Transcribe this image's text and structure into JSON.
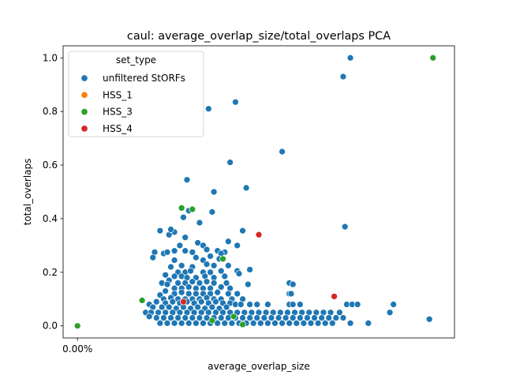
{
  "chart_data": {
    "type": "scatter",
    "title": "caul: average_overlap_size/total_overlaps PCA",
    "xlabel": "average_overlap_size",
    "ylabel": "total_overlaps",
    "x_ticks": [
      "0.00%"
    ],
    "y_ticks": [
      "0.0",
      "0.2",
      "0.4",
      "0.6",
      "0.8",
      "1.0"
    ],
    "xlim": [
      -0.04,
      1.05
    ],
    "ylim": [
      -0.045,
      1.045
    ],
    "grid": false,
    "legend": {
      "title": "set_type",
      "placement": "top-left"
    },
    "series": [
      {
        "name": "unfiltered StORFs",
        "color": "#1f77b4",
        "points": [
          [
            0.76,
            1.0
          ],
          [
            0.74,
            0.93
          ],
          [
            0.44,
            0.835
          ],
          [
            0.365,
            0.81
          ],
          [
            0.57,
            0.65
          ],
          [
            0.425,
            0.61
          ],
          [
            0.745,
            0.37
          ],
          [
            0.47,
            0.515
          ],
          [
            0.305,
            0.545
          ],
          [
            0.38,
            0.5
          ],
          [
            0.31,
            0.43
          ],
          [
            0.375,
            0.425
          ],
          [
            0.295,
            0.405
          ],
          [
            0.34,
            0.385
          ],
          [
            0.46,
            0.355
          ],
          [
            0.27,
            0.35
          ],
          [
            0.23,
            0.355
          ],
          [
            0.255,
            0.34
          ],
          [
            0.3,
            0.33
          ],
          [
            0.26,
            0.36
          ],
          [
            0.285,
            0.3
          ],
          [
            0.335,
            0.31
          ],
          [
            0.35,
            0.3
          ],
          [
            0.42,
            0.315
          ],
          [
            0.215,
            0.275
          ],
          [
            0.24,
            0.27
          ],
          [
            0.25,
            0.275
          ],
          [
            0.27,
            0.28
          ],
          [
            0.3,
            0.28
          ],
          [
            0.32,
            0.275
          ],
          [
            0.36,
            0.285
          ],
          [
            0.39,
            0.28
          ],
          [
            0.41,
            0.275
          ],
          [
            0.445,
            0.3
          ],
          [
            0.21,
            0.255
          ],
          [
            0.33,
            0.255
          ],
          [
            0.37,
            0.26
          ],
          [
            0.4,
            0.27
          ],
          [
            0.27,
            0.245
          ],
          [
            0.35,
            0.245
          ],
          [
            0.395,
            0.25
          ],
          [
            0.26,
            0.22
          ],
          [
            0.29,
            0.225
          ],
          [
            0.32,
            0.22
          ],
          [
            0.36,
            0.23
          ],
          [
            0.38,
            0.225
          ],
          [
            0.42,
            0.225
          ],
          [
            0.48,
            0.21
          ],
          [
            0.28,
            0.2
          ],
          [
            0.3,
            0.2
          ],
          [
            0.315,
            0.205
          ],
          [
            0.35,
            0.2
          ],
          [
            0.37,
            0.2
          ],
          [
            0.4,
            0.205
          ],
          [
            0.445,
            0.205
          ],
          [
            0.45,
            0.195
          ],
          [
            0.245,
            0.19
          ],
          [
            0.27,
            0.185
          ],
          [
            0.29,
            0.185
          ],
          [
            0.305,
            0.18
          ],
          [
            0.33,
            0.18
          ],
          [
            0.355,
            0.185
          ],
          [
            0.38,
            0.18
          ],
          [
            0.41,
            0.185
          ],
          [
            0.255,
            0.17
          ],
          [
            0.28,
            0.16
          ],
          [
            0.3,
            0.16
          ],
          [
            0.32,
            0.165
          ],
          [
            0.34,
            0.16
          ],
          [
            0.36,
            0.165
          ],
          [
            0.38,
            0.16
          ],
          [
            0.415,
            0.16
          ],
          [
            0.475,
            0.155
          ],
          [
            0.59,
            0.16
          ],
          [
            0.6,
            0.155
          ],
          [
            0.235,
            0.16
          ],
          [
            0.25,
            0.155
          ],
          [
            0.27,
            0.14
          ],
          [
            0.29,
            0.14
          ],
          [
            0.31,
            0.145
          ],
          [
            0.33,
            0.14
          ],
          [
            0.35,
            0.14
          ],
          [
            0.37,
            0.14
          ],
          [
            0.4,
            0.145
          ],
          [
            0.425,
            0.14
          ],
          [
            0.245,
            0.13
          ],
          [
            0.27,
            0.12
          ],
          [
            0.29,
            0.125
          ],
          [
            0.31,
            0.12
          ],
          [
            0.33,
            0.12
          ],
          [
            0.35,
            0.12
          ],
          [
            0.37,
            0.12
          ],
          [
            0.39,
            0.125
          ],
          [
            0.42,
            0.12
          ],
          [
            0.445,
            0.12
          ],
          [
            0.59,
            0.12
          ],
          [
            0.595,
            0.12
          ],
          [
            0.23,
            0.115
          ],
          [
            0.24,
            0.1
          ],
          [
            0.26,
            0.105
          ],
          [
            0.28,
            0.1
          ],
          [
            0.3,
            0.1
          ],
          [
            0.32,
            0.1
          ],
          [
            0.34,
            0.1
          ],
          [
            0.36,
            0.105
          ],
          [
            0.38,
            0.1
          ],
          [
            0.4,
            0.1
          ],
          [
            0.43,
            0.1
          ],
          [
            0.46,
            0.1
          ],
          [
            0.22,
            0.09
          ],
          [
            0.245,
            0.085
          ],
          [
            0.265,
            0.09
          ],
          [
            0.285,
            0.085
          ],
          [
            0.305,
            0.09
          ],
          [
            0.325,
            0.085
          ],
          [
            0.345,
            0.09
          ],
          [
            0.365,
            0.085
          ],
          [
            0.385,
            0.09
          ],
          [
            0.405,
            0.085
          ],
          [
            0.425,
            0.085
          ],
          [
            0.44,
            0.08
          ],
          [
            0.455,
            0.08
          ],
          [
            0.48,
            0.08
          ],
          [
            0.5,
            0.08
          ],
          [
            0.53,
            0.08
          ],
          [
            0.59,
            0.08
          ],
          [
            0.6,
            0.08
          ],
          [
            0.62,
            0.08
          ],
          [
            0.75,
            0.08
          ],
          [
            0.765,
            0.08
          ],
          [
            0.78,
            0.08
          ],
          [
            0.88,
            0.08
          ],
          [
            0.2,
            0.08
          ],
          [
            0.21,
            0.07
          ],
          [
            0.235,
            0.07
          ],
          [
            0.255,
            0.07
          ],
          [
            0.275,
            0.065
          ],
          [
            0.295,
            0.07
          ],
          [
            0.315,
            0.065
          ],
          [
            0.335,
            0.07
          ],
          [
            0.355,
            0.065
          ],
          [
            0.375,
            0.07
          ],
          [
            0.395,
            0.065
          ],
          [
            0.415,
            0.07
          ],
          [
            0.19,
            0.05
          ],
          [
            0.205,
            0.05
          ],
          [
            0.225,
            0.05
          ],
          [
            0.245,
            0.05
          ],
          [
            0.265,
            0.05
          ],
          [
            0.285,
            0.05
          ],
          [
            0.305,
            0.05
          ],
          [
            0.325,
            0.05
          ],
          [
            0.345,
            0.05
          ],
          [
            0.365,
            0.05
          ],
          [
            0.385,
            0.05
          ],
          [
            0.405,
            0.05
          ],
          [
            0.425,
            0.05
          ],
          [
            0.445,
            0.05
          ],
          [
            0.465,
            0.05
          ],
          [
            0.485,
            0.05
          ],
          [
            0.505,
            0.05
          ],
          [
            0.525,
            0.05
          ],
          [
            0.545,
            0.05
          ],
          [
            0.565,
            0.05
          ],
          [
            0.585,
            0.05
          ],
          [
            0.605,
            0.05
          ],
          [
            0.625,
            0.05
          ],
          [
            0.645,
            0.05
          ],
          [
            0.665,
            0.05
          ],
          [
            0.685,
            0.05
          ],
          [
            0.705,
            0.05
          ],
          [
            0.73,
            0.05
          ],
          [
            0.87,
            0.05
          ],
          [
            0.2,
            0.035
          ],
          [
            0.22,
            0.03
          ],
          [
            0.24,
            0.03
          ],
          [
            0.26,
            0.03
          ],
          [
            0.28,
            0.03
          ],
          [
            0.3,
            0.03
          ],
          [
            0.32,
            0.03
          ],
          [
            0.34,
            0.03
          ],
          [
            0.36,
            0.03
          ],
          [
            0.38,
            0.03
          ],
          [
            0.4,
            0.03
          ],
          [
            0.42,
            0.03
          ],
          [
            0.44,
            0.03
          ],
          [
            0.46,
            0.03
          ],
          [
            0.48,
            0.03
          ],
          [
            0.5,
            0.03
          ],
          [
            0.52,
            0.03
          ],
          [
            0.54,
            0.03
          ],
          [
            0.56,
            0.03
          ],
          [
            0.58,
            0.03
          ],
          [
            0.6,
            0.03
          ],
          [
            0.62,
            0.03
          ],
          [
            0.64,
            0.03
          ],
          [
            0.66,
            0.03
          ],
          [
            0.68,
            0.03
          ],
          [
            0.7,
            0.03
          ],
          [
            0.72,
            0.03
          ],
          [
            0.74,
            0.03
          ],
          [
            0.98,
            0.025
          ],
          [
            0.23,
            0.01
          ],
          [
            0.25,
            0.01
          ],
          [
            0.27,
            0.01
          ],
          [
            0.29,
            0.01
          ],
          [
            0.31,
            0.01
          ],
          [
            0.33,
            0.01
          ],
          [
            0.35,
            0.01
          ],
          [
            0.37,
            0.01
          ],
          [
            0.39,
            0.01
          ],
          [
            0.41,
            0.01
          ],
          [
            0.43,
            0.01
          ],
          [
            0.45,
            0.01
          ],
          [
            0.47,
            0.01
          ],
          [
            0.49,
            0.01
          ],
          [
            0.51,
            0.01
          ],
          [
            0.53,
            0.01
          ],
          [
            0.55,
            0.01
          ],
          [
            0.57,
            0.01
          ],
          [
            0.59,
            0.01
          ],
          [
            0.61,
            0.01
          ],
          [
            0.63,
            0.01
          ],
          [
            0.65,
            0.01
          ],
          [
            0.67,
            0.01
          ],
          [
            0.69,
            0.01
          ],
          [
            0.71,
            0.01
          ],
          [
            0.76,
            0.01
          ],
          [
            0.81,
            0.01
          ]
        ]
      },
      {
        "name": "HSS_1",
        "color": "#ff7f0e",
        "points": []
      },
      {
        "name": "HSS_3",
        "color": "#2ca02c",
        "points": [
          [
            0.0,
            0.0
          ],
          [
            0.18,
            0.095
          ],
          [
            0.29,
            0.44
          ],
          [
            0.32,
            0.435
          ],
          [
            0.405,
            0.25
          ],
          [
            0.375,
            0.02
          ],
          [
            0.435,
            0.035
          ],
          [
            0.46,
            0.005
          ],
          [
            0.99,
            1.0
          ]
        ]
      },
      {
        "name": "HSS_4",
        "color": "#d62728",
        "points": [
          [
            0.295,
            0.09
          ],
          [
            0.505,
            0.34
          ],
          [
            0.715,
            0.11
          ]
        ]
      }
    ]
  }
}
